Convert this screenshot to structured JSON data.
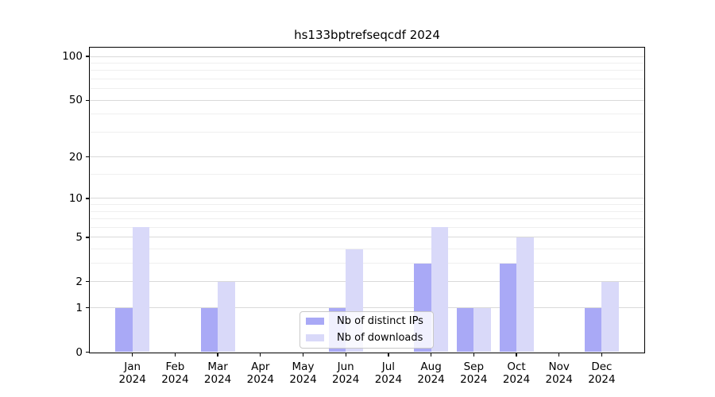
{
  "title": "hs133bptrefseqcdf 2024",
  "legend": {
    "items": [
      {
        "label": "Nb of distinct IPs",
        "color": "#a9a9f6"
      },
      {
        "label": "Nb of downloads",
        "color": "#d9d9f9"
      }
    ]
  },
  "chart_data": {
    "type": "bar",
    "title": "hs133bptrefseqcdf 2024",
    "categories": [
      "Jan 2024",
      "Feb 2024",
      "Mar 2024",
      "Apr 2024",
      "May 2024",
      "Jun 2024",
      "Jul 2024",
      "Aug 2024",
      "Sep 2024",
      "Oct 2024",
      "Nov 2024",
      "Dec 2024"
    ],
    "series": [
      {
        "name": "Nb of distinct IPs",
        "color": "#a9a9f6",
        "values": [
          1,
          0,
          1,
          0,
          0,
          1,
          0,
          3,
          1,
          3,
          0,
          1
        ]
      },
      {
        "name": "Nb of downloads",
        "color": "#d9d9f9",
        "values": [
          6,
          0,
          2,
          0,
          0,
          4,
          0,
          6,
          1,
          5,
          0,
          2
        ]
      }
    ],
    "xlabel": "",
    "ylabel": "",
    "y_scale": "log1p",
    "ylim": [
      0,
      114
    ],
    "y_major_ticks": [
      0,
      1,
      2,
      5,
      10,
      20,
      50,
      100
    ],
    "y_minor_ticks": [
      3,
      4,
      6,
      7,
      8,
      9,
      15,
      30,
      40,
      60,
      70,
      80,
      90
    ],
    "grid": true,
    "legend_position": "lower center"
  },
  "colors": {
    "background": "#ffffff",
    "major_grid": "#d9d9d9",
    "minor_grid": "#efefef",
    "axis": "#000000",
    "text": "#000000"
  }
}
